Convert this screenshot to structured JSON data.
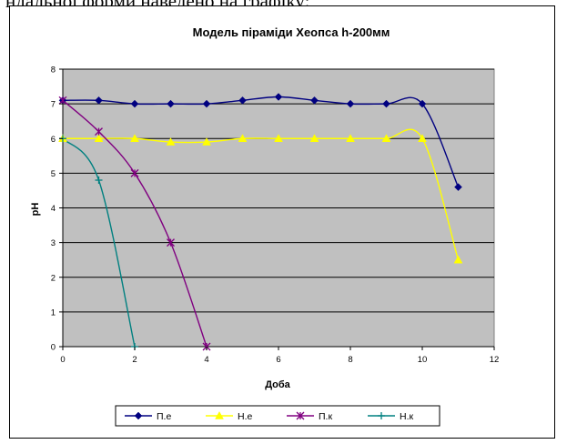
{
  "page": {
    "top_text": "ндальної форми наведено на графіку:"
  },
  "chart_data": {
    "type": "line",
    "title": "Модель піраміди Хеопса h-200мм",
    "xlabel": "Доба",
    "ylabel": "pH",
    "xlim": [
      0,
      12
    ],
    "ylim": [
      0,
      8
    ],
    "xticks": [
      0,
      2,
      4,
      6,
      8,
      10,
      12
    ],
    "yticks": [
      0,
      1,
      2,
      3,
      4,
      5,
      6,
      7,
      8
    ],
    "grid": "horizontal",
    "plot_background": "#C0C0C0",
    "legend_position": "bottom",
    "series": [
      {
        "name": "П.е",
        "color": "#000080",
        "marker": "diamond",
        "x": [
          0,
          1,
          2,
          3,
          4,
          5,
          6,
          7,
          8,
          9,
          10,
          11
        ],
        "y": [
          7.1,
          7.1,
          7.0,
          7.0,
          7.0,
          7.1,
          7.2,
          7.1,
          7.0,
          7.0,
          7.0,
          4.6
        ]
      },
      {
        "name": "Н.е",
        "color": "#FFFF00",
        "marker": "triangle",
        "x": [
          0,
          1,
          2,
          3,
          4,
          5,
          6,
          7,
          8,
          9,
          10,
          11
        ],
        "y": [
          6.0,
          6.0,
          6.0,
          5.9,
          5.9,
          6.0,
          6.0,
          6.0,
          6.0,
          6.0,
          6.0,
          2.5
        ]
      },
      {
        "name": "П.к",
        "color": "#800080",
        "marker": "star",
        "x": [
          0,
          1,
          2,
          3,
          4
        ],
        "y": [
          7.1,
          6.2,
          5.0,
          3.0,
          0.0
        ]
      },
      {
        "name": "Н.к",
        "color": "#008080",
        "marker": "plus",
        "x": [
          0,
          1,
          2
        ],
        "y": [
          6.0,
          4.8,
          0.0
        ]
      }
    ]
  }
}
